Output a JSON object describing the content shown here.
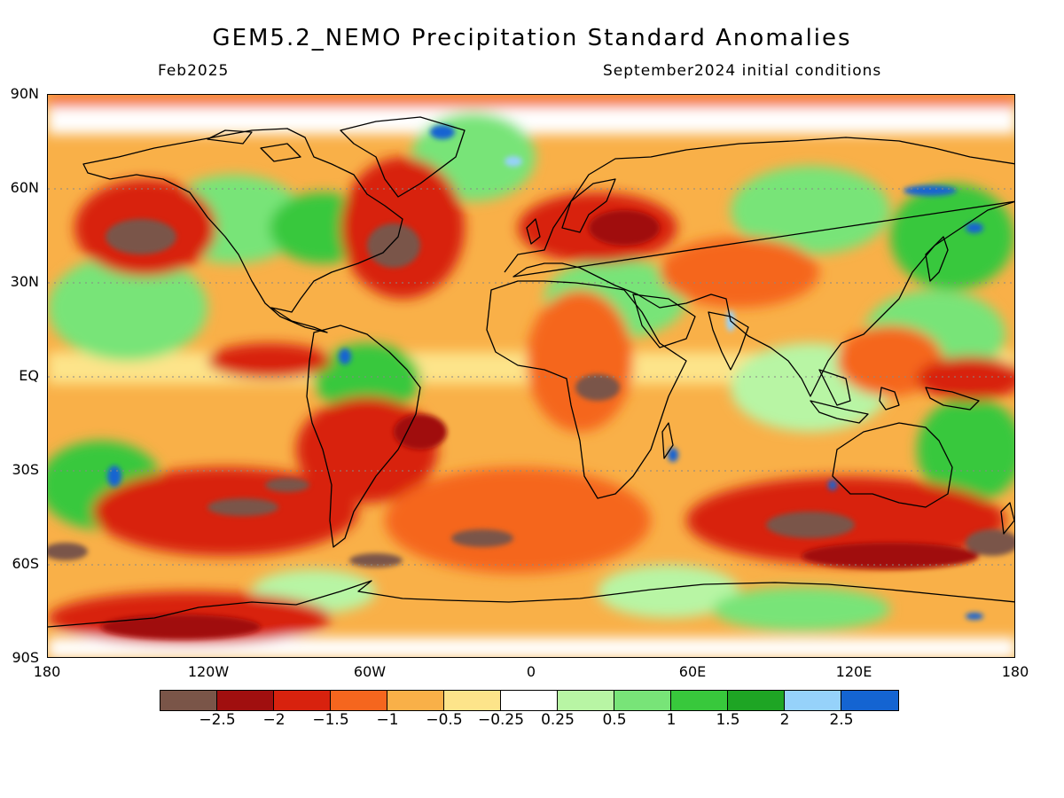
{
  "header": {
    "title": "GEM5.2_NEMO Precipitation Standard Anomalies",
    "valid_month": "Feb2025",
    "initial_conditions": "September2024 initial conditions"
  },
  "axes": {
    "lat_labels": [
      "90N",
      "60N",
      "30N",
      "EQ",
      "30S",
      "60S",
      "90S"
    ],
    "lon_labels": [
      "180",
      "120W",
      "60W",
      "0",
      "60E",
      "120E",
      "180"
    ]
  },
  "colorbar": {
    "colors": [
      "#7a5548",
      "#a00f0f",
      "#d8220e",
      "#f5661e",
      "#f9b048",
      "#fde48a",
      "#ffffff",
      "#b8f5a4",
      "#78e478",
      "#38c83c",
      "#1ea524",
      "#96d2fa",
      "#1464d2"
    ],
    "labels": [
      "-2.5",
      "-2",
      "-1.5",
      "-1",
      "-0.5",
      "-0.25",
      "0.25",
      "0.5",
      "1",
      "1.5",
      "2",
      "2.5"
    ]
  }
}
